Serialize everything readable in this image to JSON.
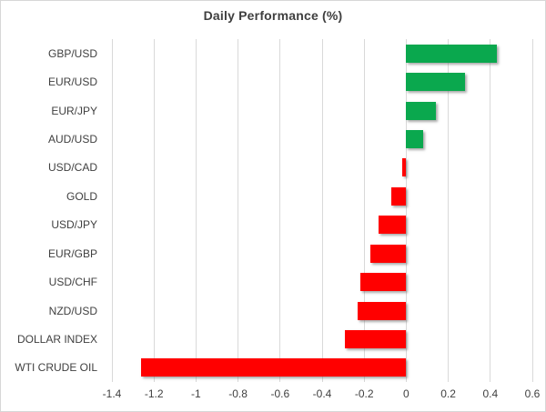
{
  "window": {
    "background": "#ffffff",
    "border_color": "#d7d7d7"
  },
  "chart_data": {
    "type": "bar",
    "orientation": "horizontal",
    "title": "Daily Performance (%)",
    "categories": [
      "GBP/USD",
      "EUR/USD",
      "EUR/JPY",
      "AUD/USD",
      "USD/CAD",
      "GOLD",
      "USD/JPY",
      "EUR/GBP",
      "USD/CHF",
      "NZD/USD",
      "DOLLAR INDEX",
      "WTI CRUDE OIL"
    ],
    "values": [
      0.43,
      0.28,
      0.14,
      0.08,
      -0.02,
      -0.07,
      -0.13,
      -0.17,
      -0.22,
      -0.23,
      -0.29,
      -1.26
    ],
    "xlabel": "",
    "ylabel": "",
    "xlim": [
      -1.4,
      0.6
    ],
    "x_tick_values": [
      -1.4,
      -1.2,
      -1,
      -0.8,
      -0.6,
      -0.4,
      -0.2,
      0,
      0.2,
      0.4,
      0.6
    ],
    "x_tick_labels": [
      "-1.4",
      "-1.2",
      "-1",
      "-0.8",
      "-0.6",
      "-0.4",
      "-0.2",
      "0",
      "0.2",
      "0.4",
      "0.6"
    ],
    "grid": true,
    "legend": false,
    "positive_color": "#0aa84e",
    "negative_color": "#ff0000",
    "gridline_color": "#d9d9d9",
    "text_color": "#404040",
    "title_color": "#3f3f3f"
  }
}
